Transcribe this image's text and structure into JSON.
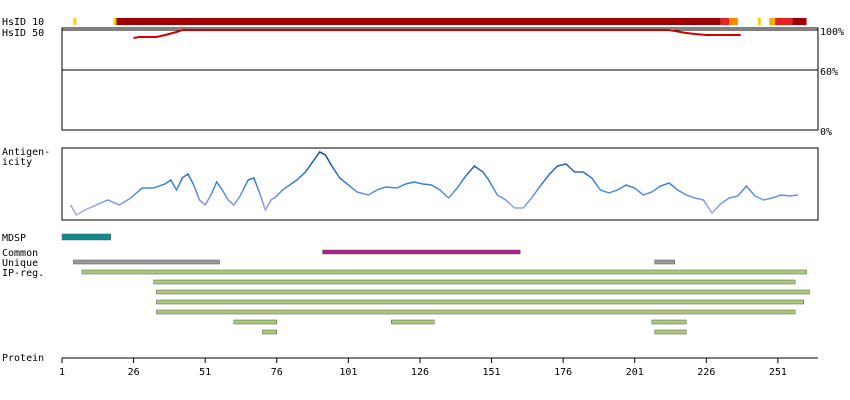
{
  "chart_data": {
    "type": "feature-map",
    "xlabel": "Protein",
    "xlim": [
      1,
      265
    ],
    "xticks": [
      1,
      26,
      51,
      76,
      101,
      126,
      151,
      176,
      201,
      226,
      251
    ],
    "hsid10": {
      "label": "HsID 10",
      "segments": [
        {
          "start": 5,
          "end": 6,
          "color": "#ffcc00"
        },
        {
          "start": 19,
          "end": 20,
          "color": "#ffcc00"
        },
        {
          "start": 20,
          "end": 231,
          "color": "#a00000"
        },
        {
          "start": 231,
          "end": 234,
          "color": "#e82020"
        },
        {
          "start": 234,
          "end": 237,
          "color": "#ff8800"
        },
        {
          "start": 244,
          "end": 245,
          "color": "#ffcc00"
        },
        {
          "start": 248,
          "end": 250,
          "color": "#ffaa00"
        },
        {
          "start": 250,
          "end": 256,
          "color": "#e82020"
        },
        {
          "start": 256,
          "end": 261,
          "color": "#a00000"
        }
      ]
    },
    "hsid50": {
      "label": "HsID 50",
      "color": "#d00000",
      "x": [
        26,
        28,
        34,
        37,
        41,
        43,
        213,
        215,
        219,
        222,
        226,
        238
      ],
      "values": [
        92,
        93,
        93,
        95,
        98,
        100,
        100,
        99,
        97,
        96,
        95,
        95
      ],
      "ylim": [
        0,
        100
      ],
      "yticks": [
        {
          "value": 100,
          "label": "100%"
        },
        {
          "value": 60,
          "label": "60%"
        },
        {
          "value": 0,
          "label": "0%"
        }
      ]
    },
    "antigenicity": {
      "label": [
        "Antigen-",
        "icity"
      ],
      "x": [
        4,
        6,
        9,
        13,
        17,
        21,
        25,
        29,
        33,
        37,
        39,
        41,
        43,
        45,
        47,
        49,
        51,
        53,
        55,
        57,
        59,
        61,
        63,
        66,
        68,
        70,
        72,
        74,
        76,
        78,
        80,
        83,
        86,
        89,
        91,
        93,
        95,
        98,
        101,
        104,
        108,
        111,
        114,
        118,
        121,
        124,
        127,
        130,
        133,
        136,
        139,
        142,
        145,
        148,
        150,
        153,
        156,
        159,
        162,
        165,
        168,
        171,
        174,
        177,
        180,
        183,
        186,
        189,
        192,
        195,
        198,
        201,
        204,
        207,
        210,
        213,
        216,
        219,
        222,
        225,
        228,
        231,
        234,
        237,
        240,
        243,
        246,
        249,
        252,
        255,
        258
      ],
      "values": [
        15,
        5,
        10,
        15,
        20,
        15,
        22,
        32,
        32,
        36,
        40,
        30,
        42,
        46,
        35,
        20,
        15,
        25,
        38,
        30,
        20,
        15,
        23,
        40,
        42,
        27,
        10,
        20,
        24,
        30,
        34,
        40,
        48,
        60,
        68,
        65,
        55,
        42,
        35,
        28,
        25,
        30,
        33,
        32,
        36,
        38,
        36,
        35,
        30,
        22,
        32,
        44,
        54,
        48,
        40,
        25,
        20,
        12,
        12,
        22,
        34,
        45,
        54,
        56,
        48,
        48,
        42,
        30,
        27,
        30,
        35,
        32,
        25,
        28,
        34,
        37,
        30,
        25,
        22,
        20,
        7,
        16,
        22,
        24,
        34,
        24,
        20,
        22,
        25,
        24,
        25
      ],
      "ylim": [
        0,
        72
      ]
    },
    "features": [
      {
        "label": "MDSP",
        "color": "#108a90",
        "rows": [
          [
            [
              1,
              18
            ]
          ]
        ]
      },
      {
        "label": "Common",
        "color": "#b0208a",
        "rows": [
          [
            [
              92,
              161
            ]
          ]
        ]
      },
      {
        "label": "Unique",
        "color": "#9a9a9a",
        "rows": [
          [
            [
              5,
              56
            ],
            [
              208,
              215
            ]
          ]
        ]
      },
      {
        "label": "IP-reg.",
        "color": "#a8cc7a",
        "rows": [
          [
            [
              8,
              261
            ]
          ],
          [
            [
              33,
              257
            ]
          ],
          [
            [
              34,
              262
            ]
          ],
          [
            [
              34,
              260
            ]
          ],
          [
            [
              34,
              257
            ]
          ],
          [
            [
              61,
              76
            ],
            [
              116,
              131
            ],
            [
              207,
              219
            ]
          ],
          [
            [
              71,
              76
            ],
            [
              208,
              219
            ]
          ]
        ]
      }
    ]
  }
}
